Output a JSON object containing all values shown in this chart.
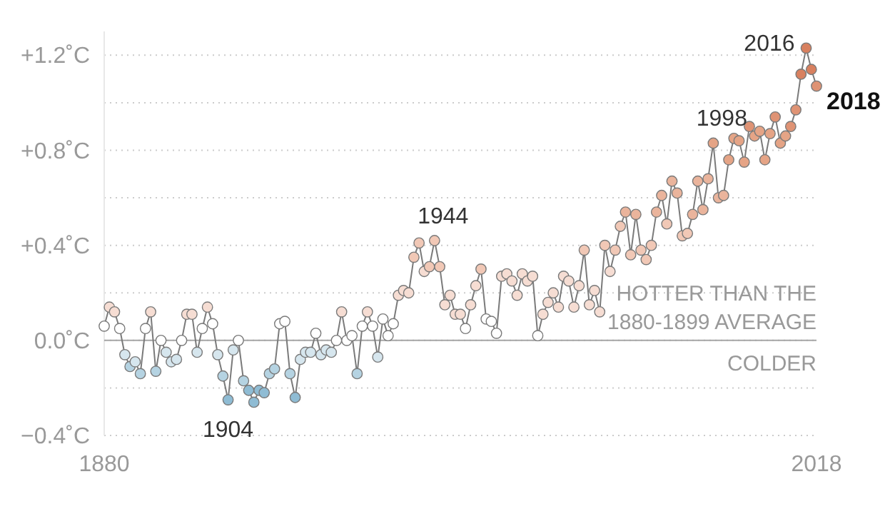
{
  "chart_data": {
    "type": "line",
    "xlim": [
      1880,
      2018
    ],
    "xticks": [
      1880,
      2018
    ],
    "ylim": [
      -0.4,
      1.3
    ],
    "yticks": [
      {
        "value": -0.4,
        "label": "−0.4˚C"
      },
      {
        "value": -0.2,
        "label": null
      },
      {
        "value": 0,
        "label": "0.0˚C"
      },
      {
        "value": 0.2,
        "label": null
      },
      {
        "value": 0.4,
        "label": "+0.4˚C"
      },
      {
        "value": 0.6,
        "label": null
      },
      {
        "value": 0.8,
        "label": "+0.8˚C"
      },
      {
        "value": 1.0,
        "label": null
      },
      {
        "value": 1.2,
        "label": "+1.2˚C"
      }
    ],
    "grid": "y",
    "marker": "circle",
    "line_style": "solid",
    "ref_lines": [
      {
        "axis": "y",
        "value": 0,
        "color": "#a6a6a6"
      }
    ],
    "annotations": [
      {
        "text": "1904",
        "x": 1904,
        "y": -0.25
      },
      {
        "text": "1944",
        "x": 1944,
        "y": 0.42
      },
      {
        "text": "1998",
        "x": 1998,
        "y": 0.83
      },
      {
        "text": "2016",
        "x": 2016,
        "y": 1.23
      },
      {
        "text": "2018",
        "x": 2018,
        "y": 1.07
      },
      "HOTTER THAN THE\n1880-1899 AVERAGE",
      "COLDER"
    ],
    "series": [
      {
        "color": "#7a7a7a",
        "x": [
          1880,
          1881,
          1882,
          1883,
          1884,
          1885,
          1886,
          1887,
          1888,
          1889,
          1890,
          1891,
          1892,
          1893,
          1894,
          1895,
          1896,
          1897,
          1898,
          1899,
          1900,
          1901,
          1902,
          1903,
          1904,
          1905,
          1906,
          1907,
          1908,
          1909,
          1910,
          1911,
          1912,
          1913,
          1914,
          1915,
          1916,
          1917,
          1918,
          1919,
          1920,
          1921,
          1922,
          1923,
          1924,
          1925,
          1926,
          1927,
          1928,
          1929,
          1930,
          1931,
          1932,
          1933,
          1934,
          1935,
          1936,
          1937,
          1938,
          1939,
          1940,
          1941,
          1942,
          1943,
          1944,
          1945,
          1946,
          1947,
          1948,
          1949,
          1950,
          1951,
          1952,
          1953,
          1954,
          1955,
          1956,
          1957,
          1958,
          1959,
          1960,
          1961,
          1962,
          1963,
          1964,
          1965,
          1966,
          1967,
          1968,
          1969,
          1970,
          1971,
          1972,
          1973,
          1974,
          1975,
          1976,
          1977,
          1978,
          1979,
          1980,
          1981,
          1982,
          1983,
          1984,
          1985,
          1986,
          1987,
          1988,
          1989,
          1990,
          1991,
          1992,
          1993,
          1994,
          1995,
          1996,
          1997,
          1998,
          1999,
          2000,
          2001,
          2002,
          2003,
          2004,
          2005,
          2006,
          2007,
          2008,
          2009,
          2010,
          2011,
          2012,
          2013,
          2014,
          2015,
          2016,
          2017,
          2018
        ],
        "values": [
          0.06,
          0.14,
          0.12,
          0.05,
          -0.06,
          -0.11,
          -0.09,
          -0.14,
          0.05,
          0.12,
          -0.13,
          0.0,
          -0.05,
          -0.09,
          -0.08,
          0.0,
          0.11,
          0.11,
          -0.05,
          0.05,
          0.14,
          0.07,
          -0.06,
          -0.15,
          -0.25,
          -0.04,
          0.0,
          -0.17,
          -0.21,
          -0.26,
          -0.21,
          -0.22,
          -0.14,
          -0.12,
          0.07,
          0.08,
          -0.14,
          -0.24,
          -0.08,
          -0.05,
          -0.05,
          0.03,
          -0.06,
          -0.04,
          -0.05,
          0.0,
          0.12,
          0.0,
          0.02,
          -0.14,
          0.06,
          0.12,
          0.06,
          -0.07,
          0.09,
          0.02,
          0.07,
          0.19,
          0.21,
          0.2,
          0.35,
          0.41,
          0.29,
          0.31,
          0.42,
          0.31,
          0.15,
          0.19,
          0.11,
          0.11,
          0.05,
          0.15,
          0.23,
          0.3,
          0.09,
          0.08,
          0.03,
          0.27,
          0.28,
          0.25,
          0.19,
          0.28,
          0.25,
          0.27,
          0.02,
          0.11,
          0.16,
          0.2,
          0.14,
          0.27,
          0.25,
          0.14,
          0.23,
          0.38,
          0.15,
          0.21,
          0.12,
          0.4,
          0.29,
          0.38,
          0.48,
          0.54,
          0.36,
          0.53,
          0.38,
          0.34,
          0.4,
          0.54,
          0.61,
          0.49,
          0.67,
          0.62,
          0.44,
          0.45,
          0.53,
          0.67,
          0.55,
          0.68,
          0.83,
          0.6,
          0.61,
          0.76,
          0.85,
          0.84,
          0.75,
          0.9,
          0.86,
          0.88,
          0.76,
          0.87,
          0.94,
          0.83,
          0.86,
          0.9,
          0.97,
          1.12,
          1.23,
          1.14,
          1.07
        ],
        "colors": [
          "#ffffff",
          "#f6ddd3",
          "#f6ddd3",
          "#ffffff",
          "#d6e6ee",
          "#b5d3e2",
          "#d6e6ee",
          "#b5d3e2",
          "#ffffff",
          "#f6ddd3",
          "#b5d3e2",
          "#ffffff",
          "#d6e6ee",
          "#d6e6ee",
          "#d6e6ee",
          "#ffffff",
          "#f6ddd3",
          "#f6ddd3",
          "#d6e6ee",
          "#ffffff",
          "#f6ddd3",
          "#ffffff",
          "#d6e6ee",
          "#b5d3e2",
          "#8fbcd4",
          "#d6e6ee",
          "#ffffff",
          "#b5d3e2",
          "#8fbcd4",
          "#8fbcd4",
          "#8fbcd4",
          "#8fbcd4",
          "#b5d3e2",
          "#b5d3e2",
          "#ffffff",
          "#ffffff",
          "#b5d3e2",
          "#8fbcd4",
          "#d6e6ee",
          "#d6e6ee",
          "#d6e6ee",
          "#ffffff",
          "#d6e6ee",
          "#d6e6ee",
          "#d6e6ee",
          "#ffffff",
          "#f6ddd3",
          "#ffffff",
          "#ffffff",
          "#b5d3e2",
          "#ffffff",
          "#f6ddd3",
          "#ffffff",
          "#d6e6ee",
          "#ffffff",
          "#ffffff",
          "#ffffff",
          "#f6ddd3",
          "#f6ddd3",
          "#f6ddd3",
          "#f1c8b6",
          "#f1c8b6",
          "#f6ddd3",
          "#f1c8b6",
          "#f1c8b6",
          "#f1c8b6",
          "#f6ddd3",
          "#f6ddd3",
          "#f6ddd3",
          "#f6ddd3",
          "#ffffff",
          "#f6ddd3",
          "#f6ddd3",
          "#f1c8b6",
          "#ffffff",
          "#ffffff",
          "#ffffff",
          "#f6ddd3",
          "#f6ddd3",
          "#f6ddd3",
          "#f6ddd3",
          "#f6ddd3",
          "#f6ddd3",
          "#f6ddd3",
          "#ffffff",
          "#f6ddd3",
          "#f6ddd3",
          "#f6ddd3",
          "#f6ddd3",
          "#f6ddd3",
          "#f6ddd3",
          "#f6ddd3",
          "#f6ddd3",
          "#f1c8b6",
          "#f6ddd3",
          "#f6ddd3",
          "#f6ddd3",
          "#f1c8b6",
          "#f6ddd3",
          "#f1c8b6",
          "#f1c8b6",
          "#eab49c",
          "#f1c8b6",
          "#eab49c",
          "#f1c8b6",
          "#f1c8b6",
          "#f1c8b6",
          "#eab49c",
          "#eab49c",
          "#f1c8b6",
          "#eab49c",
          "#eab49c",
          "#f1c8b6",
          "#f1c8b6",
          "#eab49c",
          "#eab49c",
          "#eab49c",
          "#eab49c",
          "#e5a486",
          "#eab49c",
          "#eab49c",
          "#e5a486",
          "#e5a486",
          "#e5a486",
          "#e5a486",
          "#df9374",
          "#e5a486",
          "#e5a486",
          "#e5a486",
          "#e5a486",
          "#df9374",
          "#e5a486",
          "#e5a486",
          "#df9374",
          "#df9374",
          "#d8805f",
          "#d8805f",
          "#d8805f",
          "#df9374"
        ]
      }
    ]
  }
}
